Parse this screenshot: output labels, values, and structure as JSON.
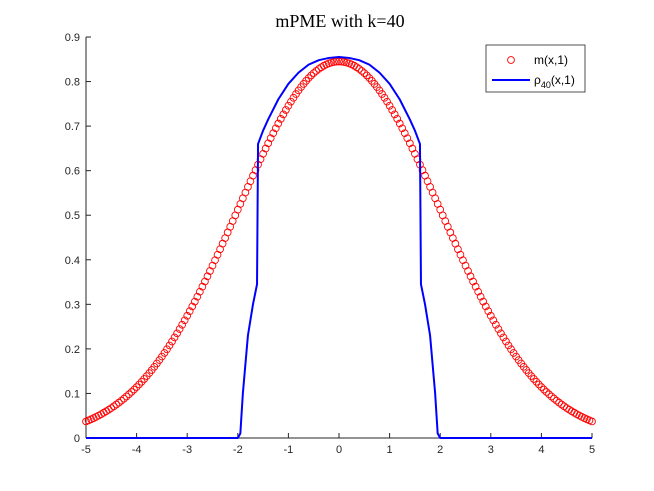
{
  "chart_data": {
    "type": "line",
    "title": "mPME with k=40",
    "xlabel": "",
    "ylabel": "",
    "xlim": [
      -5,
      5
    ],
    "ylim": [
      0,
      0.9
    ],
    "xticks": [
      -5,
      -4,
      -3,
      -2,
      -1,
      0,
      1,
      2,
      3,
      4,
      5
    ],
    "xtick_labels": [
      "-5",
      "-4",
      "-3",
      "-2",
      "-1",
      "0",
      "1",
      "2",
      "3",
      "4",
      "5"
    ],
    "yticks": [
      0,
      0.1,
      0.2,
      0.3,
      0.4,
      0.5,
      0.6,
      0.7,
      0.8,
      0.9
    ],
    "ytick_labels": [
      "0",
      "0.1",
      "0.2",
      "0.3",
      "0.4",
      "0.5",
      "0.6",
      "0.7",
      "0.8",
      "0.9"
    ],
    "grid": false,
    "legend_position": "top-right",
    "series": [
      {
        "name": "m(x,1)",
        "legend_main": "m(x,1)",
        "legend_sub": "",
        "legend_tail": "",
        "style": "markers-circle",
        "color": "#ff0000",
        "gaussian": {
          "amplitude": 0.845,
          "sigma": 2.0
        },
        "x_start": -5,
        "x_end": 5,
        "n_points": 201
      },
      {
        "name": "ρ40(x,1)",
        "legend_main": "ρ",
        "legend_sub": "40",
        "legend_tail": "(x,1)",
        "style": "line",
        "color": "#0000ff",
        "x": [
          -5,
          -2.0,
          -1.95,
          -1.9,
          -1.8,
          -1.7,
          -1.62,
          -1.6,
          -1.5,
          -1.4,
          -1.2,
          -1.0,
          -0.8,
          -0.6,
          -0.4,
          -0.2,
          0,
          0.2,
          0.4,
          0.6,
          0.8,
          1.0,
          1.2,
          1.4,
          1.5,
          1.6,
          1.62,
          1.7,
          1.8,
          1.9,
          1.95,
          2.0,
          5
        ],
        "y": [
          0,
          0,
          0.01,
          0.1,
          0.23,
          0.3,
          0.345,
          0.66,
          0.69,
          0.715,
          0.76,
          0.795,
          0.82,
          0.838,
          0.848,
          0.853,
          0.855,
          0.853,
          0.848,
          0.838,
          0.82,
          0.795,
          0.76,
          0.715,
          0.69,
          0.66,
          0.345,
          0.3,
          0.23,
          0.1,
          0.01,
          0,
          0
        ]
      }
    ]
  }
}
